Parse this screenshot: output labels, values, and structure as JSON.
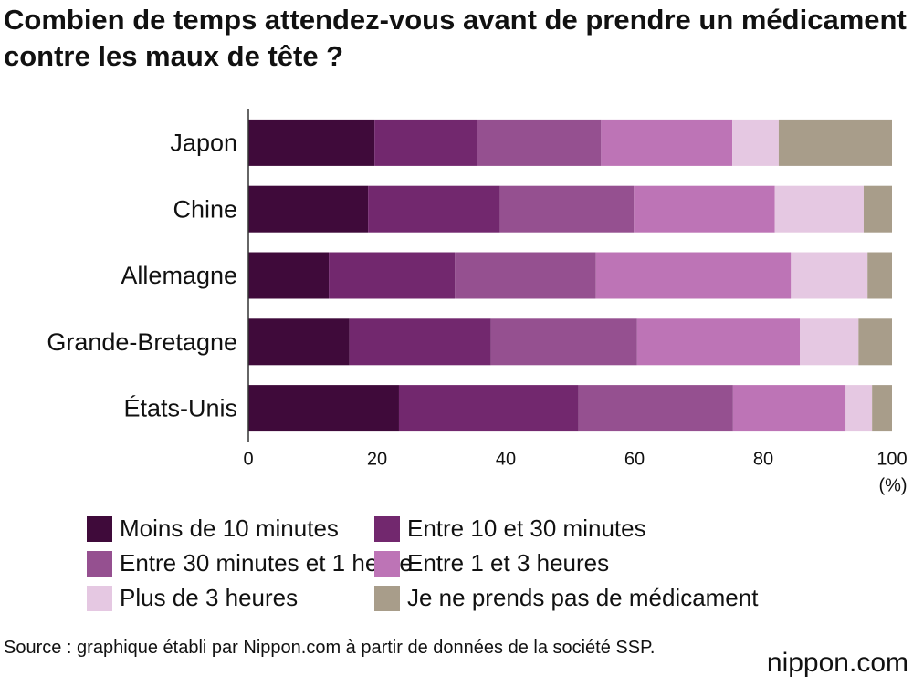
{
  "chart_data": {
    "type": "stacked-barh",
    "title": "Combien de temps attendez-vous avant de prendre un médicament contre les maux de tête ?",
    "categories": [
      "Japon",
      "Chine",
      "Allemagne",
      "Grande-Bretagne",
      "États-Unis"
    ],
    "series": [
      {
        "name": "Moins de 10 minutes",
        "color": "#3f0a3a",
        "values": [
          19.6,
          18.6,
          12.5,
          15.7,
          23.4
        ]
      },
      {
        "name": "Entre 10 et 30 minutes",
        "color": "#72286e",
        "values": [
          16.0,
          20.5,
          19.6,
          22.0,
          27.9
        ]
      },
      {
        "name": "Entre 30 minutes et 1 heure",
        "color": "#955090",
        "values": [
          19.2,
          20.8,
          21.9,
          22.7,
          24.0
        ]
      },
      {
        "name": "Entre 1 et 3 heures",
        "color": "#bd74b6",
        "values": [
          20.4,
          21.9,
          30.3,
          25.3,
          17.5
        ]
      },
      {
        "name": "Plus de 3 heures",
        "color": "#e5c8e2",
        "values": [
          7.2,
          13.8,
          11.9,
          9.1,
          4.1
        ]
      },
      {
        "name": "Je ne prends pas de médicament",
        "color": "#a89d8a",
        "values": [
          17.6,
          4.4,
          3.8,
          5.2,
          3.1
        ]
      }
    ],
    "xlim": [
      0,
      100
    ],
    "xticks": [
      0,
      20,
      40,
      60,
      80,
      100
    ],
    "xlabel": "(%)",
    "source": "Source : graphique établi par Nippon.com à partir de données de la société SSP.",
    "logo": "nippon.com"
  }
}
